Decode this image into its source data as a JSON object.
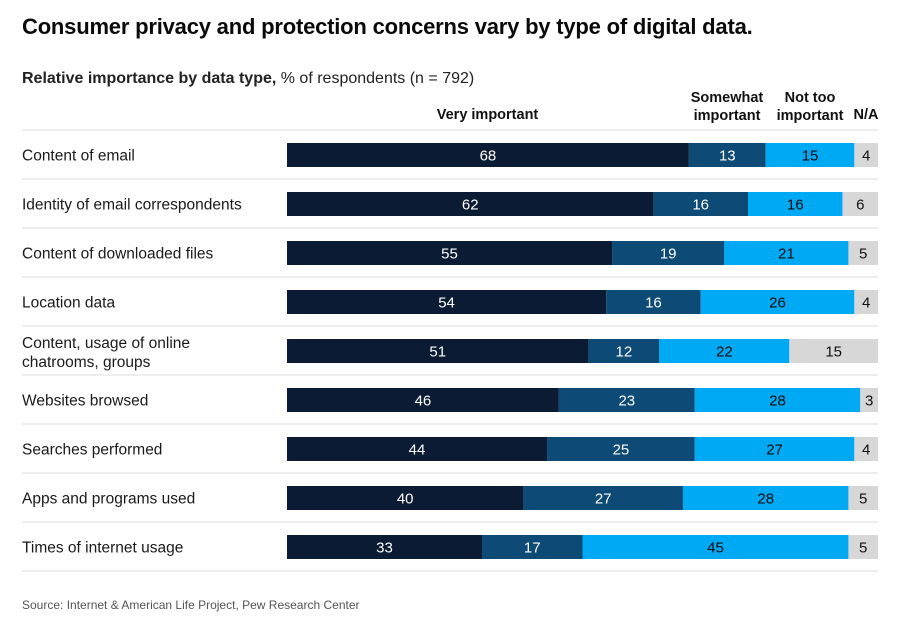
{
  "title": "Consumer privacy and protection concerns vary by type of digital data.",
  "subtitle_bold": "Relative importance by data type,",
  "subtitle_rest": " % of respondents (n = 792)",
  "source": "Source: Internet & American Life Project, Pew Research Center",
  "chart_data": {
    "type": "bar",
    "orientation": "horizontal-stacked",
    "categories": [
      [
        "Content of email"
      ],
      [
        "Identity of email correspondents"
      ],
      [
        "Content of downloaded files"
      ],
      [
        "Location data"
      ],
      [
        "Content, usage of online",
        "chatrooms, groups"
      ],
      [
        "Websites browsed"
      ],
      [
        "Searches performed"
      ],
      [
        "Apps and programs used"
      ],
      [
        "Times of internet usage"
      ]
    ],
    "series": [
      {
        "name": "Very important",
        "header": [
          "Very important"
        ],
        "color": "#0b1b33",
        "label_color": "#ffffff",
        "values": [
          68,
          62,
          55,
          54,
          51,
          46,
          44,
          40,
          33
        ]
      },
      {
        "name": "Somewhat important",
        "header": [
          "Somewhat",
          "important"
        ],
        "color": "#0d4a75",
        "label_color": "#ffffff",
        "values": [
          13,
          16,
          19,
          16,
          12,
          23,
          25,
          27,
          17
        ]
      },
      {
        "name": "Not too important",
        "header": [
          "Not too",
          "important"
        ],
        "color": "#00a9f4",
        "label_color": "#0a0a0a",
        "values": [
          15,
          16,
          21,
          26,
          22,
          28,
          27,
          28,
          45
        ]
      },
      {
        "name": "N/A",
        "header": [
          "N/A"
        ],
        "color": "#d7d7d7",
        "label_color": "#111111",
        "values": [
          4,
          6,
          5,
          4,
          15,
          3,
          4,
          5,
          5
        ]
      }
    ],
    "xlim": [
      0,
      100
    ]
  }
}
